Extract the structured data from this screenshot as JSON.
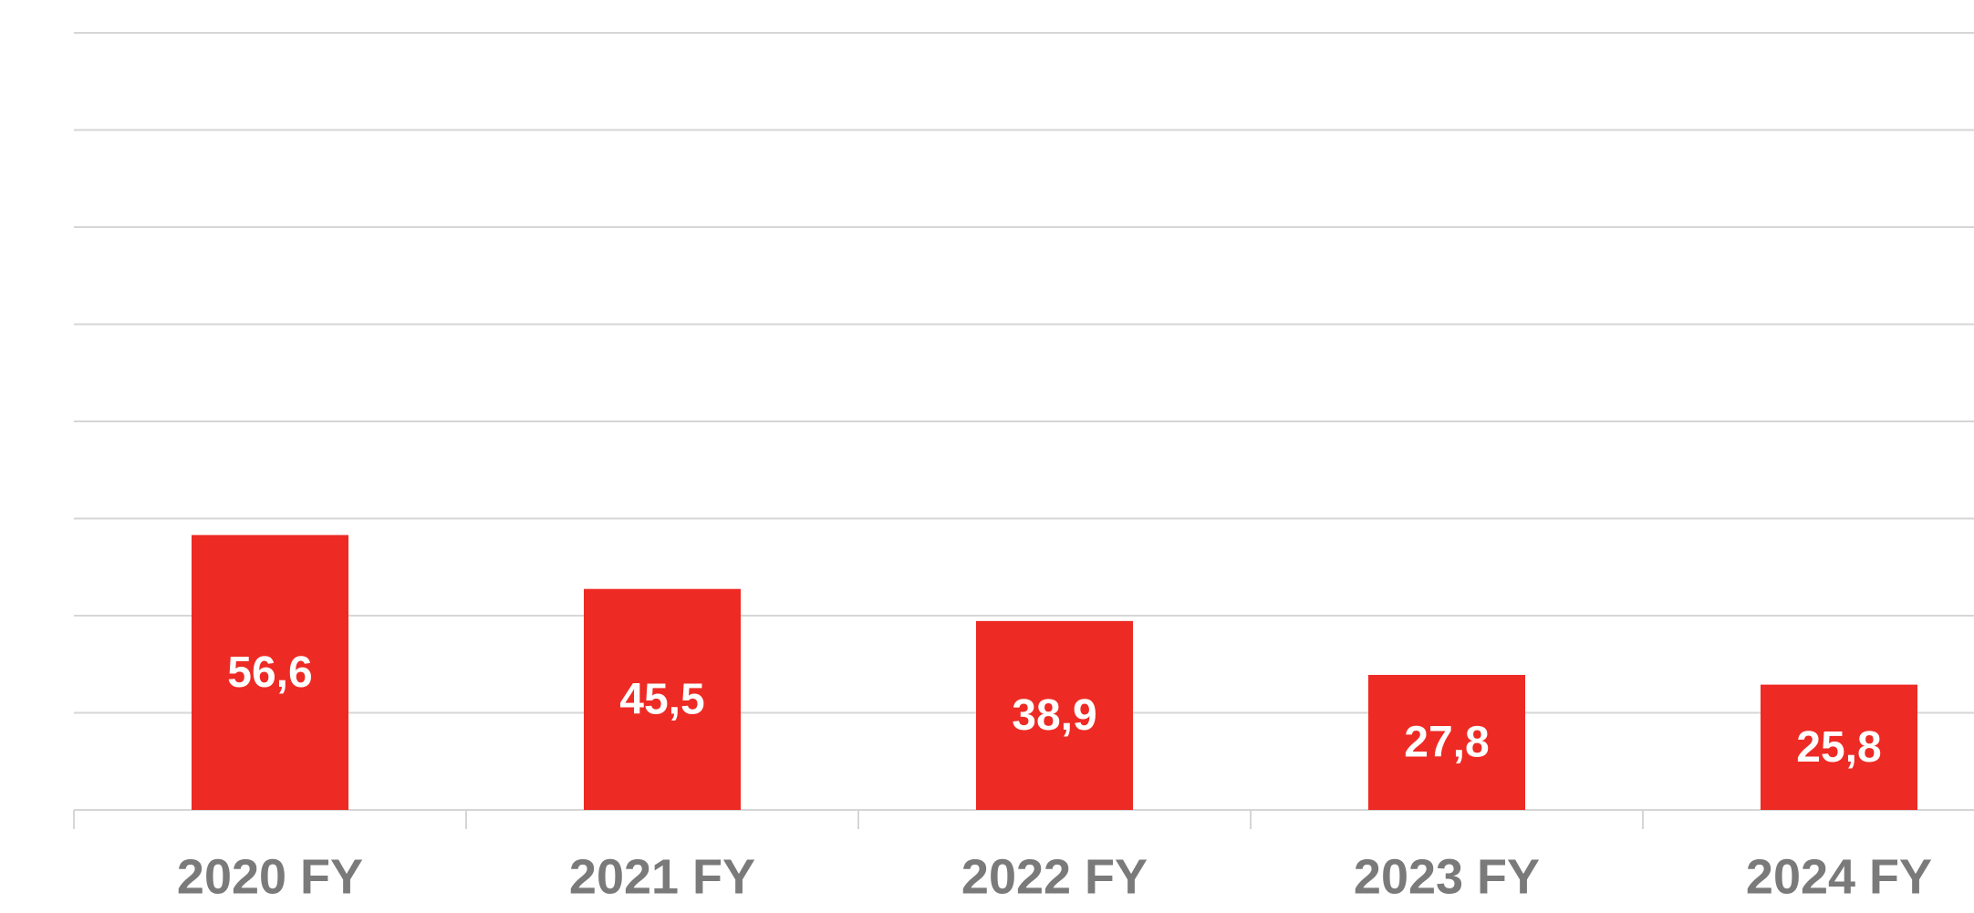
{
  "chart_data": {
    "type": "bar",
    "categories": [
      "2020 FY",
      "2021 FY",
      "2022 FY",
      "2023 FY",
      "2024 FY"
    ],
    "values": [
      56.6,
      45.5,
      38.9,
      27.8,
      25.8
    ],
    "value_labels": [
      "56,6",
      "45,5",
      "38,9",
      "27,8",
      "25,8"
    ],
    "color": "#ee2a24",
    "ylim": [
      0,
      160
    ],
    "yticks": [
      0,
      20,
      40,
      60,
      80,
      100,
      120,
      140,
      160
    ],
    "grid": true
  }
}
